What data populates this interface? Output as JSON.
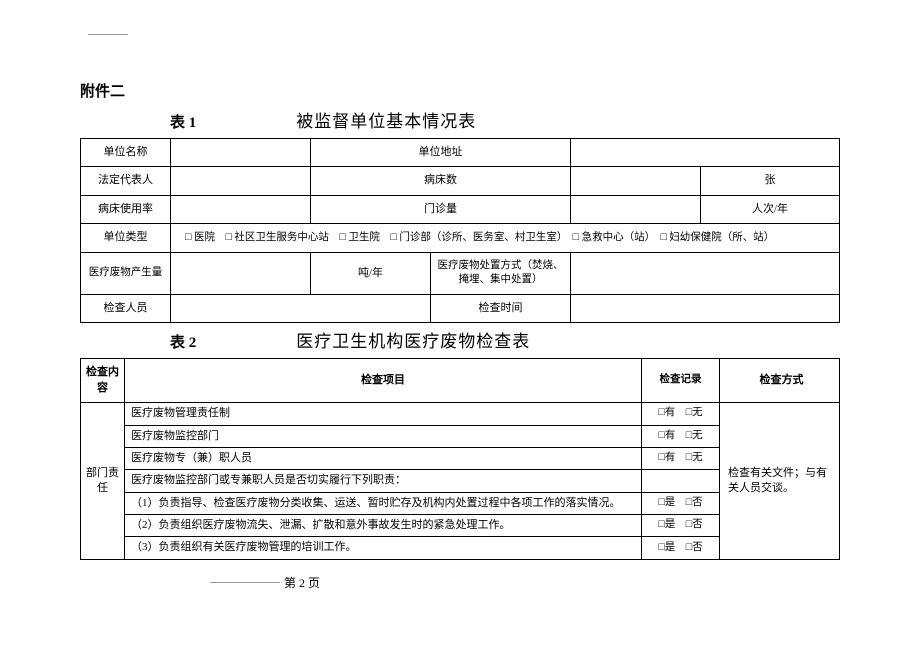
{
  "topRule": "",
  "attachHeading": "附件二",
  "table1": {
    "label": "表 1",
    "title": "被监督单位基本情况表",
    "cells": {
      "unitName": "单位名称",
      "unitAddr": "单位地址",
      "legalRep": "法定代表人",
      "beds": "病床数",
      "bedsUnit": "张",
      "bedUseRate": "病床使用率",
      "outpatient": "门诊量",
      "outpatientUnit": "人次/年",
      "unitType": "单位类型",
      "unitTypeOptions": "□ 医院　□ 社区卫生服务中心站　□ 卫生院　□ 门诊部（诊所、医务室、村卫生室）　□ 急救中心（站）　□ 妇幼保健院（所、站）",
      "wasteQty": "医疗废物产生量",
      "wasteQtyUnit": "吨/年",
      "disposalMethod": "医疗废物处置方式（焚烧、掩埋、集中处置）",
      "inspectors": "检查人员",
      "inspectTime": "检查时间"
    }
  },
  "table2": {
    "label": "表 2",
    "title": "医疗卫生机构医疗废物检查表",
    "head": {
      "content": "检查内容",
      "item": "检查项目",
      "record": "检查记录",
      "method": "检查方式"
    },
    "sectionLabel": "部门责任",
    "methodText": "检查有关文件；与有关人员交谈。",
    "rows": [
      {
        "item": "医疗废物管理责任制",
        "rec": "□有　□无"
      },
      {
        "item": "医疗废物监控部门",
        "rec": "□有　□无"
      },
      {
        "item": "医疗废物专（兼）职人员",
        "rec": "□有　□无"
      },
      {
        "item": "医疗废物监控部门或专兼职人员是否切实履行下列职责：",
        "rec": ""
      },
      {
        "item": "（1）负责指导、检查医疗废物分类收集、运送、暂时贮存及机构内处置过程中各项工作的落实情况。",
        "rec": "□是　□否"
      },
      {
        "item": "（2）负责组织医疗废物流失、泄漏、扩散和意外事故发生时的紧急处理工作。",
        "rec": "□是　□否"
      },
      {
        "item": "（3）负责组织有关医疗废物管理的培训工作。",
        "rec": "□是　□否"
      }
    ]
  },
  "footer": "第 2 页"
}
